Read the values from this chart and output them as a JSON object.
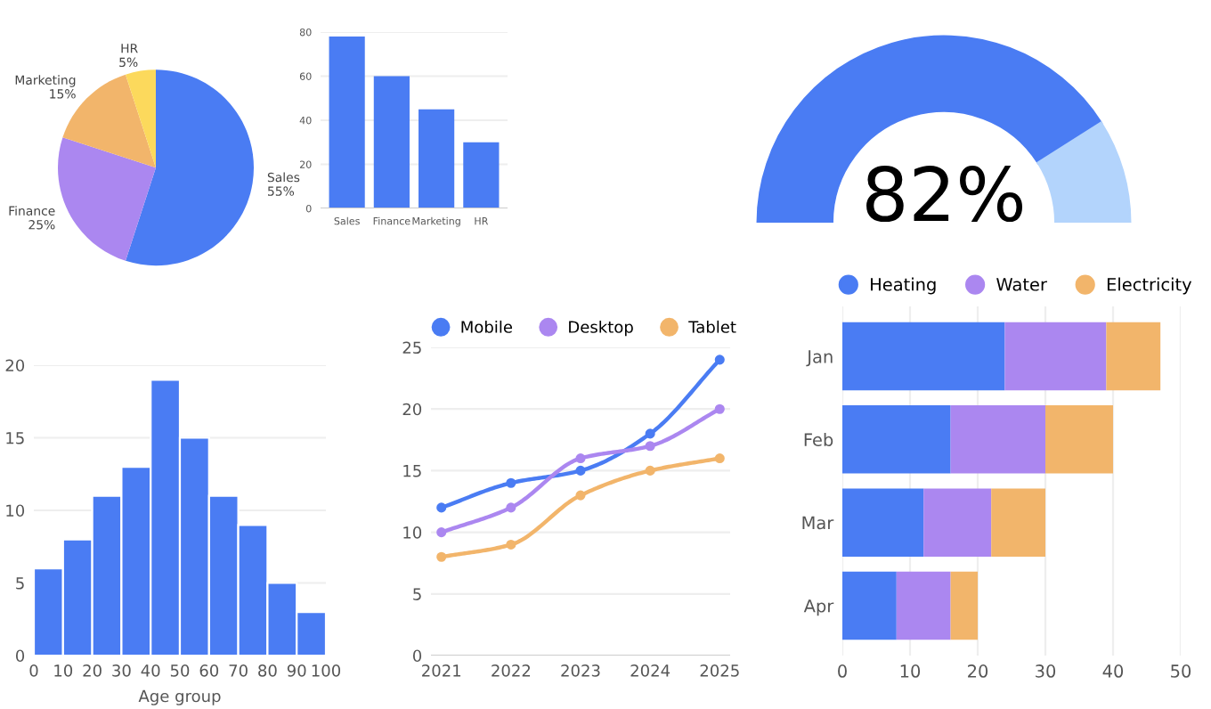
{
  "chart_data": [
    {
      "type": "pie",
      "categories": [
        "Sales",
        "Finance",
        "Marketing",
        "HR"
      ],
      "values": [
        55,
        25,
        15,
        5
      ],
      "colors": [
        "#4a7cf3",
        "#ab87f0",
        "#f2b56b",
        "#fcd95c"
      ],
      "value_labels": [
        "55%",
        "25%",
        "15%",
        "5%"
      ]
    },
    {
      "type": "bar",
      "categories": [
        "Sales",
        "Finance",
        "Marketing",
        "HR"
      ],
      "values": [
        78,
        60,
        45,
        30
      ],
      "color": "#4a7cf3",
      "ylim": [
        0,
        80
      ],
      "yticks": [
        0,
        20,
        40,
        60,
        80
      ],
      "grid": "y"
    },
    {
      "type": "donut",
      "categories": [
        null,
        null
      ],
      "values": [
        82,
        18
      ],
      "colors": [
        "#4a7cf3",
        "#b3d4fc"
      ],
      "annotations": [
        "82%"
      ]
    },
    {
      "type": "histogram",
      "bins": [
        0,
        10,
        20,
        30,
        40,
        50,
        60,
        70,
        80,
        90,
        100
      ],
      "values": [
        6,
        8,
        11,
        13,
        19,
        15,
        11,
        9,
        5,
        3
      ],
      "color": "#4a7cf3",
      "xlabel": "Age group",
      "xlim": [
        0,
        100
      ],
      "xticks": [
        0,
        10,
        20,
        30,
        40,
        50,
        60,
        70,
        80,
        90,
        100
      ],
      "ylim": [
        0,
        20
      ],
      "yticks": [
        0,
        5,
        10,
        15,
        20
      ],
      "grid": "y"
    },
    {
      "type": "line",
      "categories": [
        "2021",
        "2022",
        "2023",
        "2024",
        "2025"
      ],
      "ylim": [
        0,
        25
      ],
      "yticks": [
        0,
        5,
        10,
        15,
        20,
        25
      ],
      "grid": "y",
      "legend": "top",
      "marker": "circle",
      "series": [
        {
          "name": "Mobile",
          "color": "#4a7cf3",
          "values": [
            12,
            14,
            15,
            18,
            24
          ]
        },
        {
          "name": "Desktop",
          "color": "#ab87f0",
          "values": [
            10,
            12,
            16,
            17,
            20
          ]
        },
        {
          "name": "Tablet",
          "color": "#f2b56b",
          "values": [
            8,
            9,
            13,
            15,
            16
          ]
        }
      ]
    },
    {
      "type": "bar",
      "orientation": "horizontal",
      "stacked": true,
      "categories": [
        "Jan",
        "Feb",
        "Mar",
        "Apr"
      ],
      "xlim": [
        0,
        50
      ],
      "xticks": [
        0,
        10,
        20,
        30,
        40,
        50
      ],
      "grid": "x",
      "legend": "top",
      "series": [
        {
          "name": "Heating",
          "color": "#4a7cf3",
          "values": [
            24,
            16,
            12,
            8
          ]
        },
        {
          "name": "Water",
          "color": "#ab87f0",
          "values": [
            15,
            14,
            10,
            8
          ]
        },
        {
          "name": "Electricity",
          "color": "#f2b56b",
          "values": [
            8,
            10,
            8,
            4
          ]
        }
      ]
    }
  ]
}
